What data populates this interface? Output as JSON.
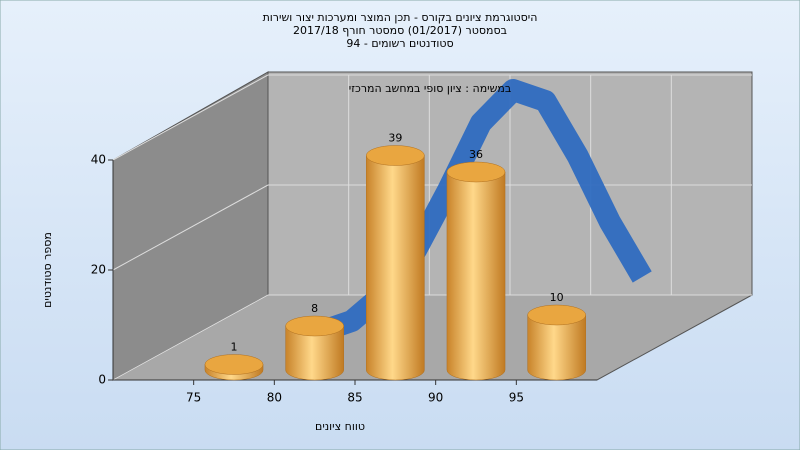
{
  "chart_data": {
    "type": "histogram",
    "title": "היסטוגרמת ציונים בקורס - תכן המוצר ומערכות יצור ושירות",
    "subtitle": "בסמסטר  (01/2017)  סמסטר חורף 2017/18",
    "subtitle2": "סטודנטים רשומים - 94",
    "annotation": "במשימה : ציון סופי במחשב המרכזי",
    "x_label": "טווח ציונים",
    "y_label": "מספר סטודנטים",
    "bins": [
      75,
      80,
      85,
      90,
      95,
      100
    ],
    "values": [
      1,
      8,
      39,
      36,
      10
    ],
    "color": "#e9a640",
    "curve": {
      "x": [
        78,
        80,
        82,
        84,
        86,
        88,
        90,
        92,
        94,
        96,
        98
      ],
      "values": [
        1,
        3,
        8,
        16,
        27,
        39,
        45,
        43,
        33,
        21,
        11
      ],
      "color": "#2f6bc0"
    },
    "xlim": [
      70,
      100
    ],
    "xticks": [
      75,
      80,
      85,
      90,
      95
    ],
    "ylim": [
      0,
      40
    ],
    "yticks": [
      0,
      20,
      40
    ],
    "grid": true
  }
}
